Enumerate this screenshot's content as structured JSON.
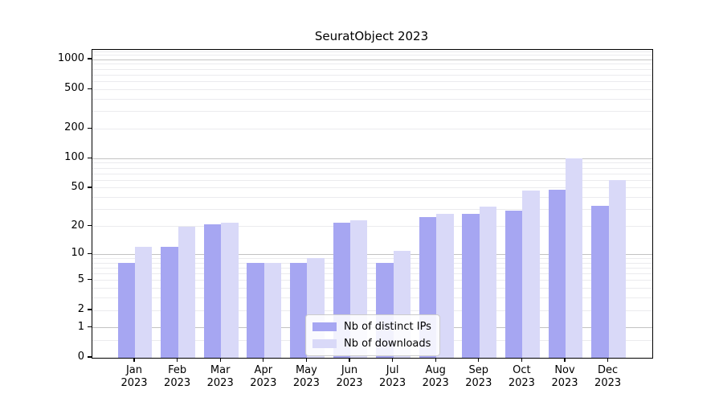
{
  "chart_data": {
    "type": "bar",
    "title": "SeuratObject 2023",
    "categories": [
      "Jan",
      "Feb",
      "Mar",
      "Apr",
      "May",
      "Jun",
      "Jul",
      "Aug",
      "Sep",
      "Oct",
      "Nov",
      "Dec"
    ],
    "x_year_suffix": "2023",
    "series": [
      {
        "name": "Nb of distinct IPs",
        "color": "#a6a6f2",
        "values": [
          8,
          12,
          21,
          8,
          8,
          22,
          8,
          25,
          27,
          29,
          48,
          33
        ]
      },
      {
        "name": "Nb of downloads",
        "color": "#d9d9f8",
        "values": [
          12,
          20,
          22,
          8,
          9,
          23,
          11,
          27,
          32,
          47,
          100,
          60
        ]
      }
    ],
    "xlabel": "",
    "ylabel": "",
    "y_axis": {
      "scale": "log1p",
      "tick_labels": [
        0,
        1,
        2,
        5,
        10,
        20,
        50,
        100,
        200,
        500,
        1000
      ],
      "ylim": [
        0,
        1253
      ]
    },
    "grid": {
      "major_lines": [
        1,
        10,
        100,
        1000
      ],
      "minor_lines": [
        0.5,
        2,
        3,
        4,
        5,
        6,
        7,
        8,
        9,
        20,
        30,
        40,
        50,
        60,
        70,
        80,
        90,
        200,
        300,
        400,
        500,
        600,
        700,
        800,
        900,
        1100,
        1200
      ],
      "major_color": "#c3c3c3",
      "minor_color": "#ebebee"
    },
    "legend_position": "lower center inside",
    "axis_color": "#000000",
    "background": "#ffffff"
  }
}
